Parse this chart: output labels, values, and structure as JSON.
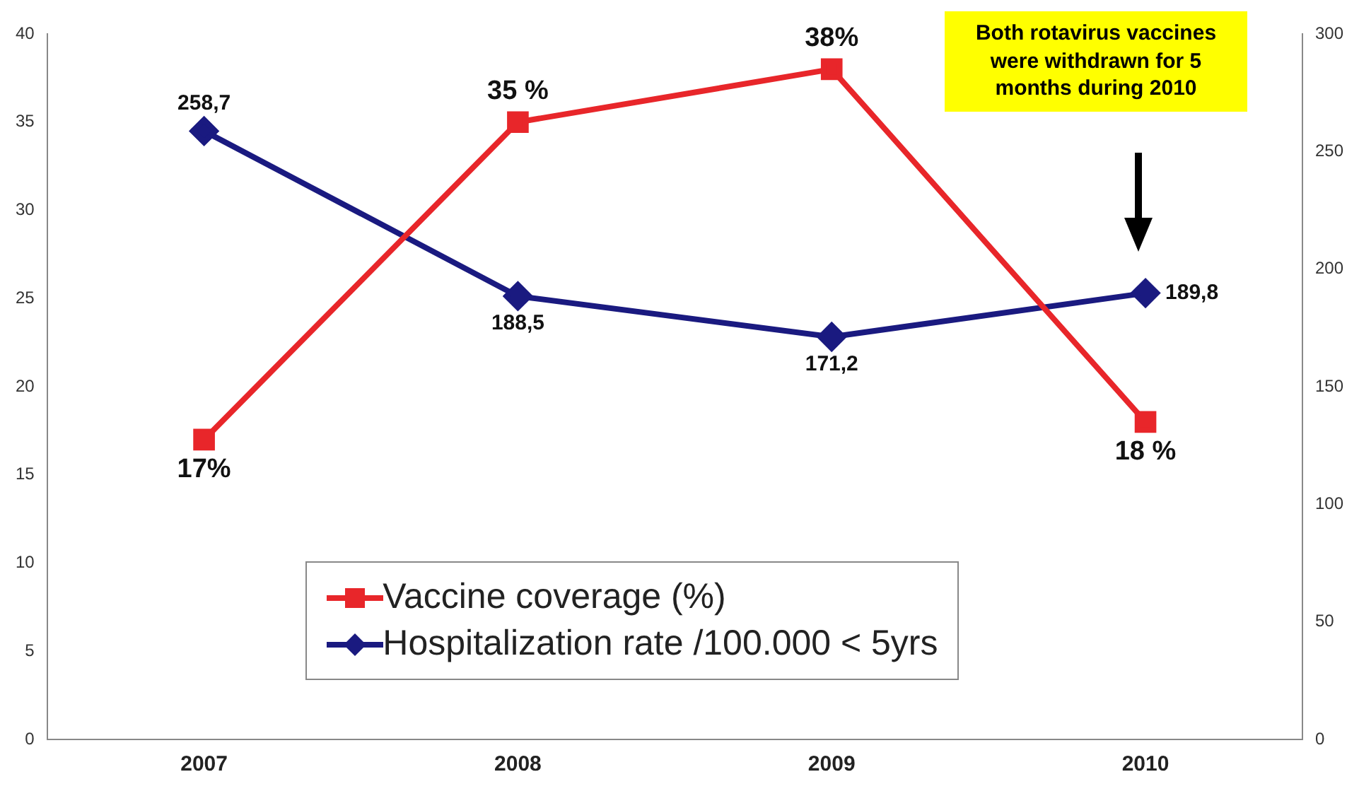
{
  "chart_data": {
    "type": "line",
    "categories": [
      "2007",
      "2008",
      "2009",
      "2010"
    ],
    "series": [
      {
        "name": "Vaccine coverage (%)",
        "color": "#e8262a",
        "marker": "square",
        "values": [
          17,
          35,
          38,
          18
        ],
        "value_labels": [
          "17%",
          "35 %",
          "38%",
          "18 %"
        ]
      },
      {
        "name": "Hospitalization rate /100.000 < 5yrs",
        "color": "#1a1a80",
        "marker": "diamond",
        "axis": "y2",
        "values": [
          258.7,
          188.5,
          171.2,
          189.8
        ],
        "value_labels": [
          "258,7",
          "188,5",
          "171,2",
          "189,8"
        ]
      }
    ],
    "ylim": [
      0,
      40
    ],
    "yticks": [
      0,
      5,
      10,
      15,
      20,
      25,
      30,
      35,
      40
    ],
    "y2lim": [
      0,
      300
    ],
    "y2ticks": [
      0,
      50,
      100,
      150,
      200,
      250,
      300
    ],
    "grid": false,
    "legend": "bottom",
    "line_style": "solid",
    "annotations": [
      "Both rotavirus vaccines were withdrawn for 5 months during 2010"
    ]
  }
}
